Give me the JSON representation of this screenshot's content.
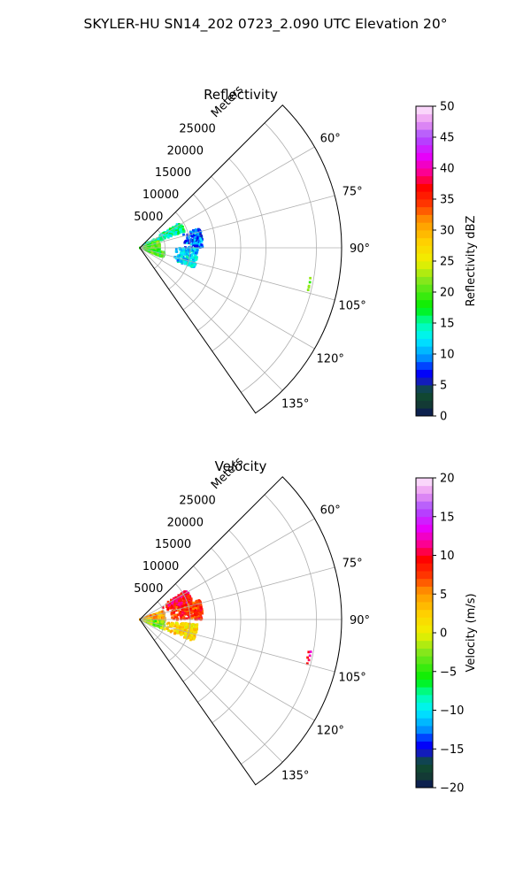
{
  "figure": {
    "title": "SKYLER-HU  SN14_202  0723_2.090 UTC Elevation 20°"
  },
  "chart_data": [
    {
      "type": "polar-sector",
      "title": "Reflectivity",
      "radial_label": "Meters",
      "r_ticks": [
        5000,
        10000,
        15000,
        20000,
        25000
      ],
      "r_tick_labels": [
        "5000",
        "10000",
        "15000",
        "20000",
        "25000"
      ],
      "rmax": 40000,
      "theta_ticks": [
        60,
        75,
        90,
        105,
        120,
        135
      ],
      "theta_tick_labels": [
        "60°",
        "75°",
        "90°",
        "105°",
        "120°",
        "135°"
      ],
      "theta_range": [
        45,
        145
      ],
      "colorbar": {
        "label": "Reflectivity dBZ",
        "range": [
          0,
          50
        ],
        "ticks": [
          0,
          5,
          10,
          15,
          20,
          25,
          30,
          35,
          40,
          45,
          50
        ],
        "tick_labels": [
          "0",
          "5",
          "10",
          "15",
          "20",
          "25",
          "30",
          "35",
          "40",
          "45",
          "50"
        ]
      },
      "regions": [
        {
          "az": [
            58,
            70
          ],
          "r": [
            0,
            9500
          ],
          "value": 15
        },
        {
          "az": [
            70,
            100
          ],
          "r": [
            0,
            4000
          ],
          "value": 20
        },
        {
          "az": [
            100,
            112
          ],
          "r": [
            0,
            5000
          ],
          "value": 19
        },
        {
          "az": [
            72,
            90
          ],
          "r": [
            8500,
            12500
          ],
          "value": 9
        },
        {
          "az": [
            90,
            110
          ],
          "r": [
            7000,
            11500
          ],
          "value": 12
        },
        {
          "az": [
            100,
            105
          ],
          "r": [
            34000,
            34500
          ],
          "value": 21
        }
      ],
      "grid": true
    },
    {
      "type": "polar-sector",
      "title": "Velocity",
      "radial_label": "Meters",
      "r_ticks": [
        5000,
        10000,
        15000,
        20000,
        25000
      ],
      "r_tick_labels": [
        "5000",
        "10000",
        "15000",
        "20000",
        "25000"
      ],
      "rmax": 40000,
      "theta_ticks": [
        60,
        75,
        90,
        105,
        120,
        135
      ],
      "theta_tick_labels": [
        "60°",
        "75°",
        "90°",
        "105°",
        "120°",
        "135°"
      ],
      "theta_range": [
        45,
        145
      ],
      "colorbar": {
        "label": "Velocity (m/s)",
        "range": [
          -20,
          20
        ],
        "ticks": [
          -20,
          -15,
          -10,
          -5,
          0,
          5,
          10,
          15,
          20
        ],
        "tick_labels": [
          "−20",
          "−15",
          "−10",
          "−5",
          "0",
          "5",
          "10",
          "15",
          "20"
        ]
      },
      "regions": [
        {
          "az": [
            58,
            72
          ],
          "r": [
            5000,
            11000
          ],
          "value": 10
        },
        {
          "az": [
            72,
            90
          ],
          "r": [
            6000,
            12500
          ],
          "value": 8
        },
        {
          "az": [
            70,
            95
          ],
          "r": [
            0,
            5000
          ],
          "value": 4
        },
        {
          "az": [
            95,
            112
          ],
          "r": [
            0,
            5000
          ],
          "value": -3
        },
        {
          "az": [
            95,
            112
          ],
          "r": [
            5000,
            11500
          ],
          "value": 2
        },
        {
          "az": [
            100,
            105
          ],
          "r": [
            34000,
            34500
          ],
          "value": 10
        }
      ],
      "grid": true
    }
  ],
  "colors": {
    "grid": "#b0b0b0",
    "frame": "#000000"
  }
}
